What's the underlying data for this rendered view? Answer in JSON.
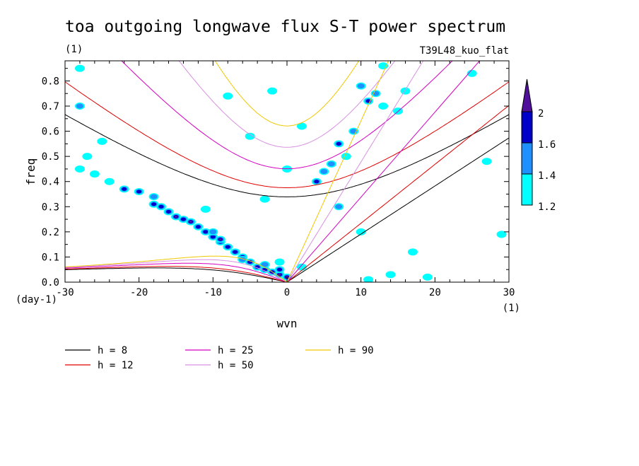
{
  "chart_data": {
    "type": "heatmap",
    "title": "toa outgoing longwave flux S-T power spectrum",
    "subtitle_left": "(1)",
    "subtitle_right": "T39L48_kuo_flat",
    "xlabel": "wvn",
    "ylabel": "freq",
    "x_unit": "(1)",
    "y_unit": "(day-1)",
    "xlim": [
      -30,
      30
    ],
    "ylim": [
      0,
      0.88
    ],
    "x_ticks": [
      -30,
      -20,
      -10,
      0,
      10,
      20,
      30
    ],
    "y_ticks": [
      0.0,
      0.1,
      0.2,
      0.3,
      0.4,
      0.5,
      0.6,
      0.7,
      0.8
    ],
    "x_tick_labels": [
      "-30",
      "-20",
      "-10",
      "0",
      "10",
      "20",
      "30"
    ],
    "y_tick_labels": [
      "0.0",
      "0.1",
      "0.2",
      "0.3",
      "0.4",
      "0.5",
      "0.6",
      "0.7",
      "0.8"
    ],
    "colorbar": {
      "levels": [
        1.2,
        1.4,
        1.6,
        2
      ],
      "labels": [
        "1.2",
        "1.4",
        "1.6",
        "2"
      ],
      "colors": [
        "#00ffff",
        "#1e90ff",
        "#0000c8",
        "#50109a"
      ]
    },
    "dispersion_curves": [
      {
        "name": "h =  8",
        "h": 8,
        "color": "#000000"
      },
      {
        "name": "h = 12",
        "h": 12,
        "color": "#e00000"
      },
      {
        "name": "h = 25",
        "h": 25,
        "color": "#d400c0"
      },
      {
        "name": "h = 50",
        "h": 50,
        "color": "#d890e0"
      },
      {
        "name": "h = 90",
        "h": 90,
        "color": "#f0c800"
      }
    ],
    "spectrum_patches": [
      {
        "x": 0,
        "y": 0.02,
        "level": 2
      },
      {
        "x": -1,
        "y": 0.03,
        "level": 2
      },
      {
        "x": -1,
        "y": 0.05,
        "level": 1.6
      },
      {
        "x": -2,
        "y": 0.04,
        "level": 1.6
      },
      {
        "x": -3,
        "y": 0.05,
        "level": 1.6
      },
      {
        "x": -4,
        "y": 0.06,
        "level": 1.6
      },
      {
        "x": -5,
        "y": 0.08,
        "level": 1.6
      },
      {
        "x": -6,
        "y": 0.1,
        "level": 1.6
      },
      {
        "x": -7,
        "y": 0.12,
        "level": 1.6
      },
      {
        "x": -8,
        "y": 0.14,
        "level": 1.6
      },
      {
        "x": -9,
        "y": 0.16,
        "level": 1.6
      },
      {
        "x": -10,
        "y": 0.18,
        "level": 1.6
      },
      {
        "x": -11,
        "y": 0.2,
        "level": 1.6
      },
      {
        "x": -12,
        "y": 0.22,
        "level": 1.6
      },
      {
        "x": -13,
        "y": 0.24,
        "level": 2
      },
      {
        "x": -14,
        "y": 0.25,
        "level": 1.6
      },
      {
        "x": -15,
        "y": 0.26,
        "level": 2
      },
      {
        "x": -16,
        "y": 0.28,
        "level": 1.6
      },
      {
        "x": -17,
        "y": 0.3,
        "level": 1.6
      },
      {
        "x": -18,
        "y": 0.31,
        "level": 1.6
      },
      {
        "x": -20,
        "y": 0.36,
        "level": 1.6
      },
      {
        "x": -22,
        "y": 0.37,
        "level": 1.6
      },
      {
        "x": -9,
        "y": 0.17,
        "level": 2
      },
      {
        "x": -3,
        "y": 0.07,
        "level": 1.4
      },
      {
        "x": -10,
        "y": 0.2,
        "level": 1.4
      },
      {
        "x": -18,
        "y": 0.34,
        "level": 1.4
      },
      {
        "x": -26,
        "y": 0.43,
        "level": 1.2
      },
      {
        "x": -28,
        "y": 0.45,
        "level": 1.2
      },
      {
        "x": -24,
        "y": 0.4,
        "level": 1.2
      },
      {
        "x": -25,
        "y": 0.56,
        "level": 1.2
      },
      {
        "x": -28,
        "y": 0.7,
        "level": 1.4
      },
      {
        "x": -27,
        "y": 0.5,
        "level": 1.2
      },
      {
        "x": -11,
        "y": 0.29,
        "level": 1.2
      },
      {
        "x": -6,
        "y": 0.09,
        "level": 1.4
      },
      {
        "x": 4,
        "y": 0.4,
        "level": 1.6
      },
      {
        "x": 5,
        "y": 0.44,
        "level": 1.4
      },
      {
        "x": 6,
        "y": 0.47,
        "level": 1.4
      },
      {
        "x": 7,
        "y": 0.55,
        "level": 1.6
      },
      {
        "x": 8,
        "y": 0.5,
        "level": 1.2
      },
      {
        "x": 9,
        "y": 0.6,
        "level": 1.4
      },
      {
        "x": 11,
        "y": 0.72,
        "level": 1.6
      },
      {
        "x": 12,
        "y": 0.75,
        "level": 1.4
      },
      {
        "x": 13,
        "y": 0.7,
        "level": 1.2
      },
      {
        "x": 10,
        "y": 0.78,
        "level": 1.4
      },
      {
        "x": 15,
        "y": 0.68,
        "level": 1.2
      },
      {
        "x": 16,
        "y": 0.76,
        "level": 1.2
      },
      {
        "x": 13,
        "y": 0.86,
        "level": 1.2
      },
      {
        "x": 7,
        "y": 0.3,
        "level": 1.4
      },
      {
        "x": 10,
        "y": 0.2,
        "level": 1.2
      },
      {
        "x": 17,
        "y": 0.12,
        "level": 1.2
      },
      {
        "x": 29,
        "y": 0.19,
        "level": 1.2
      },
      {
        "x": 27,
        "y": 0.48,
        "level": 1.2
      },
      {
        "x": -3,
        "y": 0.33,
        "level": 1.2
      },
      {
        "x": -8,
        "y": 0.74,
        "level": 1.2
      },
      {
        "x": -2,
        "y": 0.76,
        "level": 1.2
      },
      {
        "x": -5,
        "y": 0.58,
        "level": 1.2
      },
      {
        "x": 0,
        "y": 0.45,
        "level": 1.2
      },
      {
        "x": 2,
        "y": 0.62,
        "level": 1.2
      },
      {
        "x": -28,
        "y": 0.85,
        "level": 1.2
      },
      {
        "x": 25,
        "y": 0.83,
        "level": 1.2
      },
      {
        "x": 19,
        "y": 0.02,
        "level": 1.2
      },
      {
        "x": 11,
        "y": 0.01,
        "level": 1.2
      },
      {
        "x": 14,
        "y": 0.03,
        "level": 1.2
      },
      {
        "x": -1,
        "y": 0.08,
        "level": 1.2
      },
      {
        "x": 2,
        "y": 0.06,
        "level": 1.2
      }
    ]
  }
}
